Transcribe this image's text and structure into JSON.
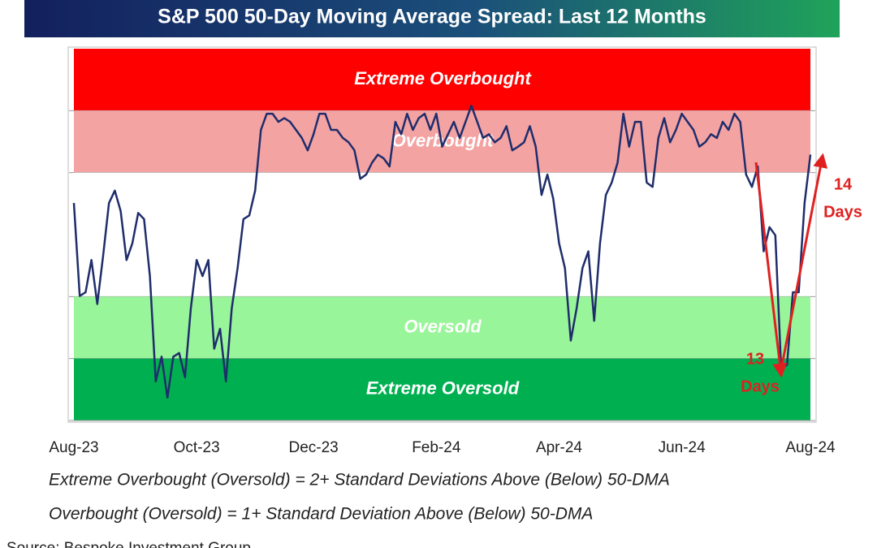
{
  "chart_data": {
    "type": "line",
    "title": "S&P 500 50-Day Moving Average Spread: Last 12 Months",
    "ylim": [
      -3,
      3
    ],
    "bands": [
      {
        "label": "Extreme Overbought",
        "from": 2,
        "to": 3,
        "color": "#ff0000"
      },
      {
        "label": "Overbought",
        "from": 1,
        "to": 2,
        "color": "#f4a3a3"
      },
      {
        "label": null,
        "from": -1,
        "to": 1,
        "color": "#ffffff"
      },
      {
        "label": "Oversold",
        "from": -2,
        "to": -1,
        "color": "#99f599"
      },
      {
        "label": "Extreme Oversold",
        "from": -3,
        "to": -2,
        "color": "#00b050"
      }
    ],
    "line_color": "#1f2d6b",
    "categories": [
      "Aug-23",
      null,
      null,
      null,
      null,
      null,
      null,
      null,
      null,
      null,
      null,
      null,
      null,
      null,
      null,
      null,
      null,
      null,
      null,
      null,
      null,
      "Oct-23",
      null,
      null,
      null,
      null,
      null,
      null,
      null,
      null,
      null,
      null,
      null,
      null,
      null,
      null,
      null,
      null,
      null,
      null,
      null,
      "Dec-23",
      null,
      null,
      null,
      null,
      null,
      null,
      null,
      null,
      null,
      null,
      null,
      null,
      null,
      null,
      null,
      null,
      null,
      null,
      null,
      null,
      "Feb-24",
      null,
      null,
      null,
      null,
      null,
      null,
      null,
      null,
      null,
      null,
      null,
      null,
      null,
      null,
      null,
      null,
      null,
      null,
      null,
      null,
      "Apr-24",
      null,
      null,
      null,
      null,
      null,
      null,
      null,
      null,
      null,
      null,
      null,
      null,
      null,
      null,
      null,
      null,
      null,
      null,
      null,
      null,
      "Jun-24",
      null,
      null,
      null,
      null,
      null,
      null,
      null,
      null,
      null,
      null,
      null,
      null,
      null,
      null,
      null,
      null,
      null,
      null,
      null,
      null,
      null,
      "Aug-24"
    ],
    "values": [
      0.51,
      -0.99,
      -0.93,
      -0.41,
      -1.12,
      -0.34,
      0.51,
      0.71,
      0.38,
      -0.41,
      -0.14,
      0.35,
      0.25,
      -0.67,
      -2.37,
      -1.97,
      -2.63,
      -1.97,
      -1.91,
      -2.3,
      -1.19,
      -0.41,
      -0.67,
      -0.41,
      -1.84,
      -1.52,
      -2.37,
      -1.19,
      -0.54,
      0.25,
      0.31,
      0.71,
      1.69,
      1.95,
      1.95,
      1.82,
      1.88,
      1.82,
      1.69,
      1.56,
      1.36,
      1.62,
      1.95,
      1.95,
      1.69,
      1.69,
      1.56,
      1.49,
      1.36,
      0.9,
      0.97,
      1.16,
      1.29,
      1.23,
      1.1,
      1.82,
      1.62,
      1.95,
      1.69,
      1.88,
      1.95,
      1.69,
      1.95,
      1.42,
      1.62,
      1.82,
      1.56,
      1.82,
      2.08,
      1.82,
      1.56,
      1.62,
      1.49,
      1.56,
      1.75,
      1.36,
      1.42,
      1.49,
      1.75,
      1.42,
      0.64,
      0.97,
      0.58,
      -0.14,
      -0.54,
      -1.71,
      -1.19,
      -0.54,
      -0.27,
      -1.39,
      -0.14,
      0.64,
      0.84,
      1.16,
      1.95,
      1.42,
      1.82,
      1.82,
      0.84,
      0.77,
      1.56,
      1.88,
      1.49,
      1.69,
      1.95,
      1.82,
      1.69,
      1.42,
      1.49,
      1.62,
      1.56,
      1.82,
      1.69,
      1.95,
      1.82,
      0.97,
      0.77,
      1.1,
      -0.27,
      0.12,
      -0.01,
      -2.17,
      -2.1,
      -0.93,
      -0.93,
      0.51,
      1.29
    ],
    "annotations": [
      {
        "lines": [
          "14",
          "Days"
        ],
        "color": "#e02020"
      },
      {
        "lines": [
          "13",
          "Days"
        ],
        "color": "#e02020"
      }
    ],
    "footnotes": [
      "Extreme Overbought (Oversold) = 2+ Standard Deviations Above (Below) 50-DMA",
      "Overbought (Oversold) = 1+ Standard Deviation Above (Below) 50-DMA"
    ],
    "source": "Source: Bespoke Investment Group"
  }
}
